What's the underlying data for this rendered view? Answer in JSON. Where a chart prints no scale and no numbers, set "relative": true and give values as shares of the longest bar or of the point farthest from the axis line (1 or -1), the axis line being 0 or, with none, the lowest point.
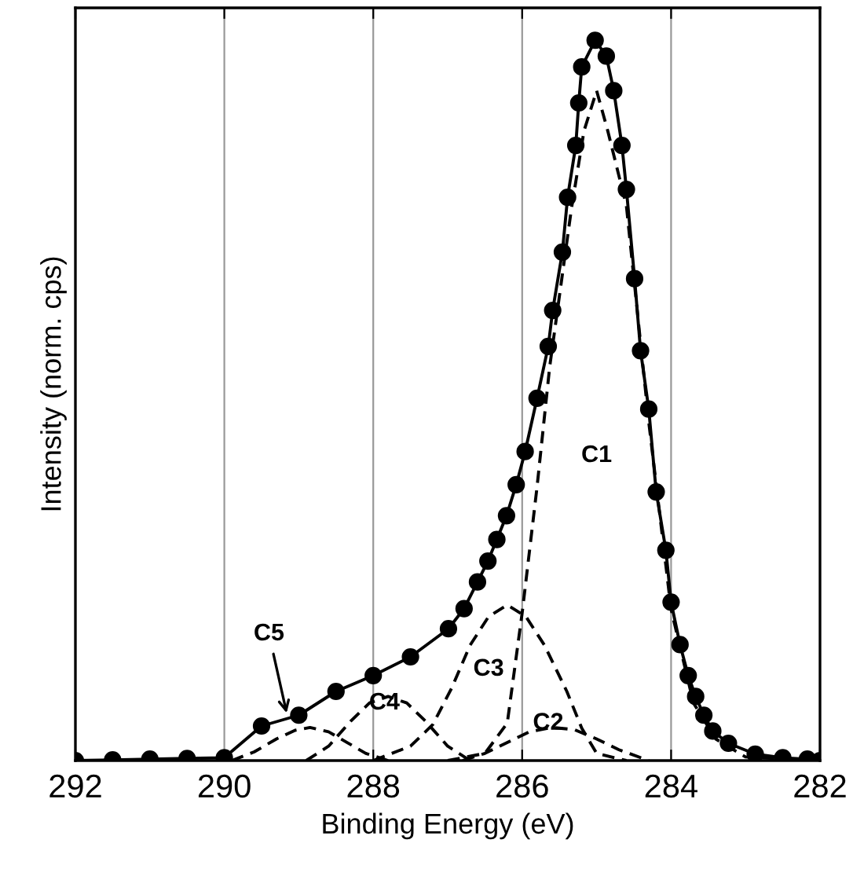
{
  "chart_data": {
    "type": "line",
    "relative": true,
    "xlabel": "Binding Energy (eV)",
    "ylabel": "Intensity (norm. cps)",
    "xlim": [
      292,
      282
    ],
    "xticks": [
      292,
      290,
      288,
      286,
      284,
      282
    ],
    "grid": "x",
    "series": [
      {
        "color": "#000000",
        "marker": "circle",
        "line_style": "solid",
        "x": [
          292,
          291.5,
          291,
          290.5,
          290,
          289.5,
          289,
          288.5,
          288,
          287.5,
          286.99,
          286.78,
          286.6,
          286.46,
          286.34,
          286.21,
          286.08,
          285.96,
          285.8,
          285.65,
          285.59,
          285.46,
          285.39,
          285.28,
          285.24,
          285.2,
          285.02,
          284.87,
          284.77,
          284.66,
          284.6,
          284.49,
          284.41,
          284.3,
          284.2,
          284.07,
          284.0,
          283.88,
          283.77,
          283.67,
          283.56,
          283.44,
          283.23,
          282.87,
          282.5,
          282.17,
          282
        ],
        "values": [
          0,
          0.001,
          0.002,
          0.003,
          0.004,
          0.048,
          0.063,
          0.096,
          0.118,
          0.144,
          0.183,
          0.211,
          0.248,
          0.277,
          0.307,
          0.34,
          0.383,
          0.429,
          0.503,
          0.575,
          0.625,
          0.706,
          0.782,
          0.854,
          0.913,
          0.963,
          1,
          0.978,
          0.93,
          0.854,
          0.793,
          0.669,
          0.569,
          0.488,
          0.373,
          0.292,
          0.22,
          0.161,
          0.118,
          0.089,
          0.063,
          0.041,
          0.024,
          0.009,
          0.004,
          0.002,
          0
        ]
      },
      {
        "color": "#000000",
        "marker": "none",
        "line_style": "dashed",
        "x": [
          287,
          286.5,
          286.2,
          286,
          285.8,
          285.63,
          285.34,
          285.17,
          285.0,
          284.85,
          284.6,
          284.3,
          284.0,
          283.7,
          283.4,
          283.0,
          282
        ],
        "values": [
          0,
          0.01,
          0.052,
          0.205,
          0.38,
          0.547,
          0.765,
          0.874,
          0.93,
          0.874,
          0.77,
          0.47,
          0.21,
          0.08,
          0.03,
          0.005,
          0
        ]
      },
      {
        "color": "#000000",
        "marker": "none",
        "line_style": "dashed",
        "x": [
          288,
          287.5,
          287.2,
          286.95,
          286.7,
          286.45,
          286.2,
          285.95,
          285.7,
          285.4,
          285.2,
          285.0,
          284.6
        ],
        "values": [
          0,
          0.02,
          0.05,
          0.1,
          0.16,
          0.2,
          0.216,
          0.2,
          0.16,
          0.096,
          0.045,
          0.01,
          0
        ]
      },
      {
        "color": "#000000",
        "marker": "none",
        "line_style": "dashed",
        "x": [
          286.8,
          286.5,
          286.2,
          285.9,
          285.6,
          285.3,
          285.0,
          284.7,
          284.3
        ],
        "values": [
          0,
          0.01,
          0.025,
          0.04,
          0.046,
          0.043,
          0.03,
          0.015,
          0
        ]
      },
      {
        "color": "#000000",
        "marker": "none",
        "line_style": "dashed",
        "x": [
          288.9,
          288.6,
          288.3,
          288.05,
          287.8,
          287.55,
          287.3,
          287.0,
          286.7
        ],
        "values": [
          0,
          0.02,
          0.055,
          0.08,
          0.089,
          0.08,
          0.055,
          0.02,
          0
        ]
      },
      {
        "color": "#000000",
        "marker": "none",
        "line_style": "dashed",
        "x": [
          289.9,
          289.6,
          289.3,
          289.05,
          288.85,
          288.6,
          288.35,
          288.1,
          287.8
        ],
        "values": [
          0,
          0.012,
          0.03,
          0.042,
          0.046,
          0.04,
          0.025,
          0.01,
          0
        ]
      }
    ],
    "annotations": [
      "C1",
      {
        "text": "C2",
        "x": 285.6,
        "y": 0.046
      },
      {
        "text": "C3",
        "x": 286.2,
        "y": 0.216
      },
      {
        "text": "C4",
        "x": 287.8,
        "y": 0.089
      },
      {
        "text": "C5",
        "x": 289.15,
        "y": 0.06
      }
    ]
  }
}
